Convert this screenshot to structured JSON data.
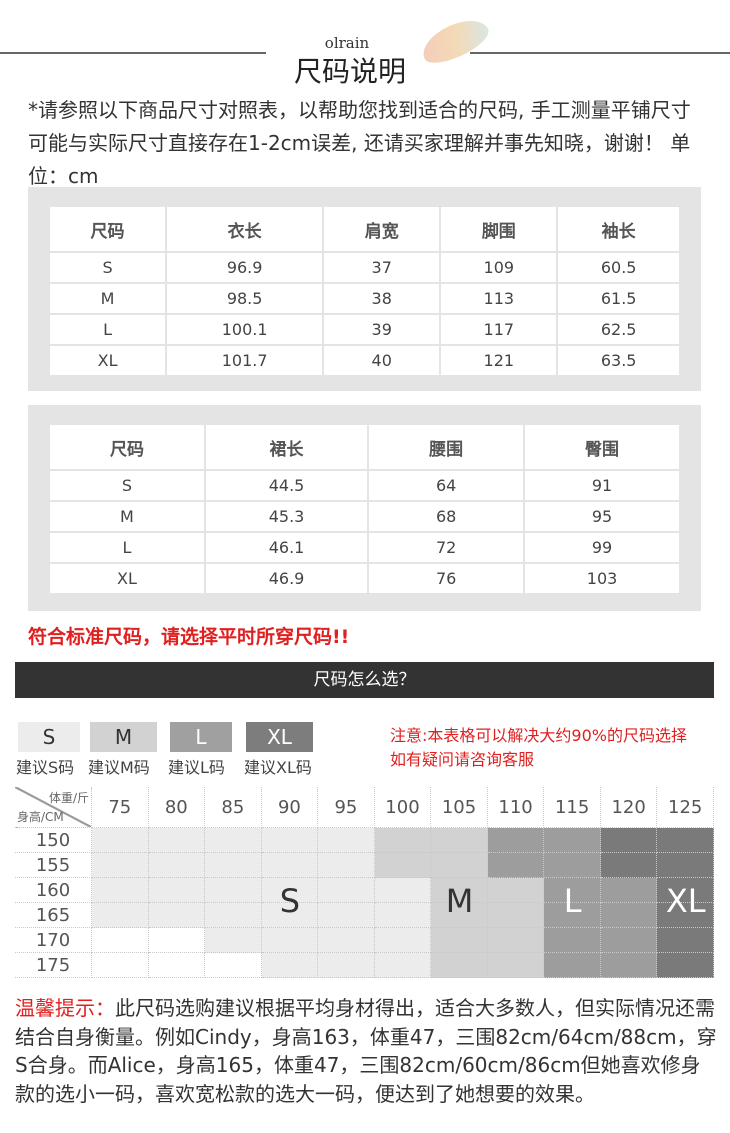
{
  "header": {
    "brand": "olrain",
    "title": "尺码说明"
  },
  "intro": "*请参照以下商品尺寸对照表，以帮助您找到适合的尺码, 手工测量平铺尺寸可能与实际尺寸直接存在1-2cm误差, 还请买家理解并事先知晓，谢谢！ 单位：cm",
  "table1": {
    "headers": [
      "尺码",
      "衣长",
      "肩宽",
      "脚围",
      "袖长"
    ],
    "rows": [
      [
        "S",
        "96.9",
        "37",
        "109",
        "60.5"
      ],
      [
        "M",
        "98.5",
        "38",
        "113",
        "61.5"
      ],
      [
        "L",
        "100.1",
        "39",
        "117",
        "62.5"
      ],
      [
        "XL",
        "101.7",
        "40",
        "121",
        "63.5"
      ]
    ]
  },
  "table2": {
    "headers": [
      "尺码",
      "裙长",
      "腰围",
      "臀围"
    ],
    "rows": [
      [
        "S",
        "44.5",
        "64",
        "91"
      ],
      [
        "M",
        "45.3",
        "68",
        "95"
      ],
      [
        "L",
        "46.1",
        "72",
        "99"
      ],
      [
        "XL",
        "46.9",
        "76",
        "103"
      ]
    ]
  },
  "warning": "符合标准尺码，请选择平时所穿尺码!!",
  "section_bar": "尺码怎么选？",
  "legend": [
    {
      "size": "S",
      "label": "建议S码",
      "color": "#ececec"
    },
    {
      "size": "M",
      "label": "建议M码",
      "color": "#d2d2d2"
    },
    {
      "size": "L",
      "label": "建议L码",
      "color": "#a0a0a0"
    },
    {
      "size": "XL",
      "label": "建议XL码",
      "color": "#7d7d7d"
    }
  ],
  "note": [
    "注意:本表格可以解决大约90%的尺码选择",
    "如有疑问请咨询客服"
  ],
  "grid": {
    "corner_top": "体重/斤",
    "corner_bottom": "身高/CM",
    "weights": [
      "75",
      "80",
      "85",
      "90",
      "95",
      "100",
      "105",
      "110",
      "115",
      "120",
      "125"
    ],
    "heights": [
      "150",
      "155",
      "160",
      "165",
      "170",
      "175"
    ],
    "cells": [
      [
        "S",
        "S",
        "S",
        "S",
        "S",
        "M",
        "M",
        "L",
        "L",
        "XL",
        "XL"
      ],
      [
        "S",
        "S",
        "S",
        "S",
        "S",
        "M",
        "M",
        "L",
        "L",
        "XL",
        "XL"
      ],
      [
        "S",
        "S",
        "S",
        "S",
        "S",
        "S",
        "M",
        "M",
        "L",
        "L",
        "XL"
      ],
      [
        "S",
        "S",
        "S",
        "S",
        "S",
        "S",
        "M",
        "M",
        "L",
        "L",
        "XL"
      ],
      [
        "",
        "",
        "S",
        "S",
        "S",
        "S",
        "M",
        "M",
        "L",
        "L",
        "XL"
      ],
      [
        "",
        "",
        "",
        "S",
        "S",
        "S",
        "M",
        "M",
        "L",
        "L",
        "XL"
      ]
    ],
    "labels": {
      "S": "S",
      "M": "M",
      "L": "L",
      "XL": "XL"
    }
  },
  "tip": {
    "prefix": "温馨提示：",
    "text": "此尺码选购建议根据平均身材得出，适合大多数人，但实际情况还需结合自身衡量。例如Cindy，身高163，体重47，三围82cm/64cm/88cm，穿S合身。而Alice，身高165，体重47，三围82cm/60cm/86cm但她喜欢修身款的选小一码，喜欢宽松款的选大一码，便达到了她想要的效果。"
  }
}
